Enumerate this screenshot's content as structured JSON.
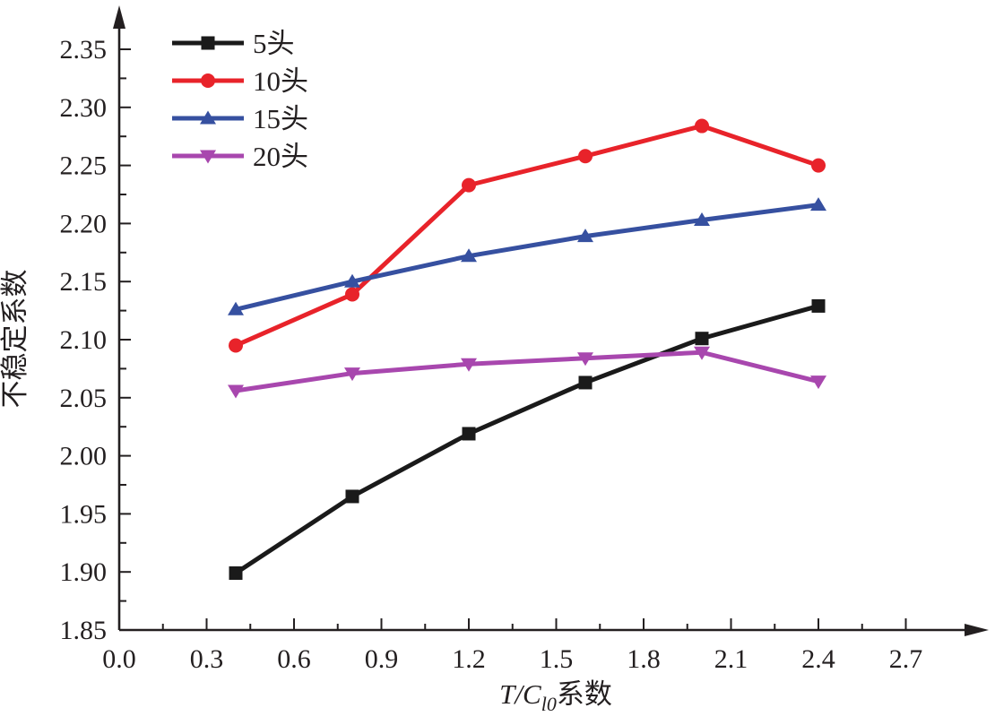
{
  "figure": {
    "background": "#ffffff",
    "axis_color": "#231f20",
    "text_color": "#231f20"
  },
  "chart_data": {
    "type": "line",
    "title": "",
    "ylabel": "不稳定系数",
    "xlabel": {
      "prefix_italic": "T/C",
      "subscript_italic": "l0",
      "suffix": "系数"
    },
    "x": [
      0.4,
      0.8,
      1.2,
      1.6,
      2.0,
      2.4
    ],
    "xlim": [
      0.0,
      2.7
    ],
    "ylim": [
      1.85,
      2.35
    ],
    "grid": false,
    "legend_position": "upper-left",
    "x_tick_values": [
      0.0,
      0.3,
      0.6,
      0.9,
      1.2,
      1.5,
      1.8,
      2.1,
      2.4,
      2.7
    ],
    "x_tick_labels": [
      "0.0",
      "0.3",
      "0.6",
      "0.9",
      "1.2",
      "1.5",
      "1.8",
      "2.1",
      "2.4",
      "2.7"
    ],
    "x_minor_step": 0.15,
    "y_tick_values": [
      1.85,
      1.9,
      1.95,
      2.0,
      2.05,
      2.1,
      2.15,
      2.2,
      2.25,
      2.3,
      2.35
    ],
    "y_tick_labels": [
      "1.85",
      "1.90",
      "1.95",
      "2.00",
      "2.05",
      "2.10",
      "2.15",
      "2.20",
      "2.25",
      "2.30",
      "2.35"
    ],
    "y_minor_step": 0.025,
    "series": [
      {
        "name": "5头",
        "color": "#1a1a1a",
        "marker": "square",
        "values": [
          1.899,
          1.965,
          2.019,
          2.063,
          2.101,
          2.129
        ]
      },
      {
        "name": "10头",
        "color": "#e8232a",
        "marker": "circle",
        "values": [
          2.095,
          2.139,
          2.233,
          2.258,
          2.284,
          2.25
        ]
      },
      {
        "name": "15头",
        "color": "#3650a0",
        "marker": "triangle-up",
        "values": [
          2.126,
          2.15,
          2.172,
          2.189,
          2.203,
          2.216
        ]
      },
      {
        "name": "20头",
        "color": "#a847ae",
        "marker": "triangle-down",
        "values": [
          2.056,
          2.071,
          2.079,
          2.084,
          2.089,
          2.064
        ]
      }
    ]
  }
}
